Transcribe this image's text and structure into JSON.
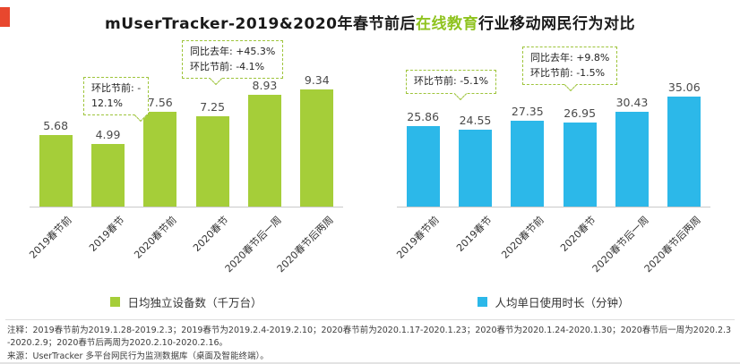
{
  "page": {
    "title_prefix": "mUserTracker-2019&2020年春节前后",
    "title_highlight": "在线教育",
    "title_suffix": "行业移动网民行为对比",
    "accent_green": "#a5ce39",
    "accent_blue": "#2cb8e9"
  },
  "chart_data": [
    {
      "type": "bar",
      "title": "日均独立设备数（千万台）",
      "categories": [
        "2019春节前",
        "2019春节",
        "2020春节前",
        "2020春节",
        "2020春节后一周",
        "2020春节后两周"
      ],
      "values": [
        5.68,
        4.99,
        7.56,
        7.25,
        8.93,
        9.34
      ],
      "bar_color": "#a5ce39",
      "ylim": [
        0,
        10
      ],
      "legend_position": "bottom",
      "annotations": [
        {
          "target": "2019春节",
          "lines": [
            "环比节前: -",
            "12.1%"
          ]
        },
        {
          "target": "2020春节",
          "lines": [
            "同比去年: +45.3%",
            "环比节前: -4.1%"
          ]
        }
      ]
    },
    {
      "type": "bar",
      "title": "人均单日使用时长（分钟）",
      "categories": [
        "2019春节前",
        "2019春节",
        "2020春节前",
        "2020春节",
        "2020春节后一周",
        "2020春节后两周"
      ],
      "values": [
        25.86,
        24.55,
        27.35,
        26.95,
        30.43,
        35.06
      ],
      "bar_color": "#2cb8e9",
      "ylim": [
        0,
        40
      ],
      "legend_position": "bottom",
      "annotations": [
        {
          "target": "2019春节",
          "lines": [
            "环比节前: -5.1%"
          ]
        },
        {
          "target": "2020春节",
          "lines": [
            "同比去年: +9.8%",
            "环比节前: -1.5%"
          ]
        }
      ]
    }
  ],
  "footnotes": {
    "note": "注释：2019春节前为2019.1.28-2019.2.3；2019春节为2019.2.4-2019.2.10；2020春节前为2020.1.17-2020.1.23；2020春节为2020.1.24-2020.1.30；2020春节后一周为2020.2.3 -2020.2.9；2020春节后两周为2020.2.10-2020.2.16。",
    "source": "来源：UserTracker 多平台网民行为监测数据库（桌面及智能终端）。"
  }
}
